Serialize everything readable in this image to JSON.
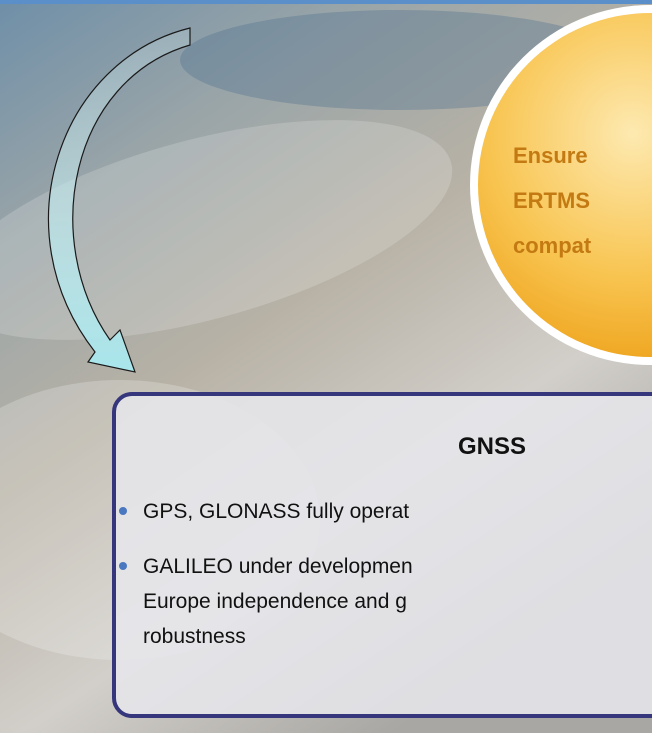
{
  "callout": {
    "lines": [
      "Ensure",
      "ERTMS",
      "compat"
    ]
  },
  "panel": {
    "title": "GNSS",
    "bullets": [
      [
        "GPS, GLONASS fully operat"
      ],
      [
        "GALILEO under developmen",
        "Europe independence and g",
        "robustness"
      ]
    ]
  }
}
